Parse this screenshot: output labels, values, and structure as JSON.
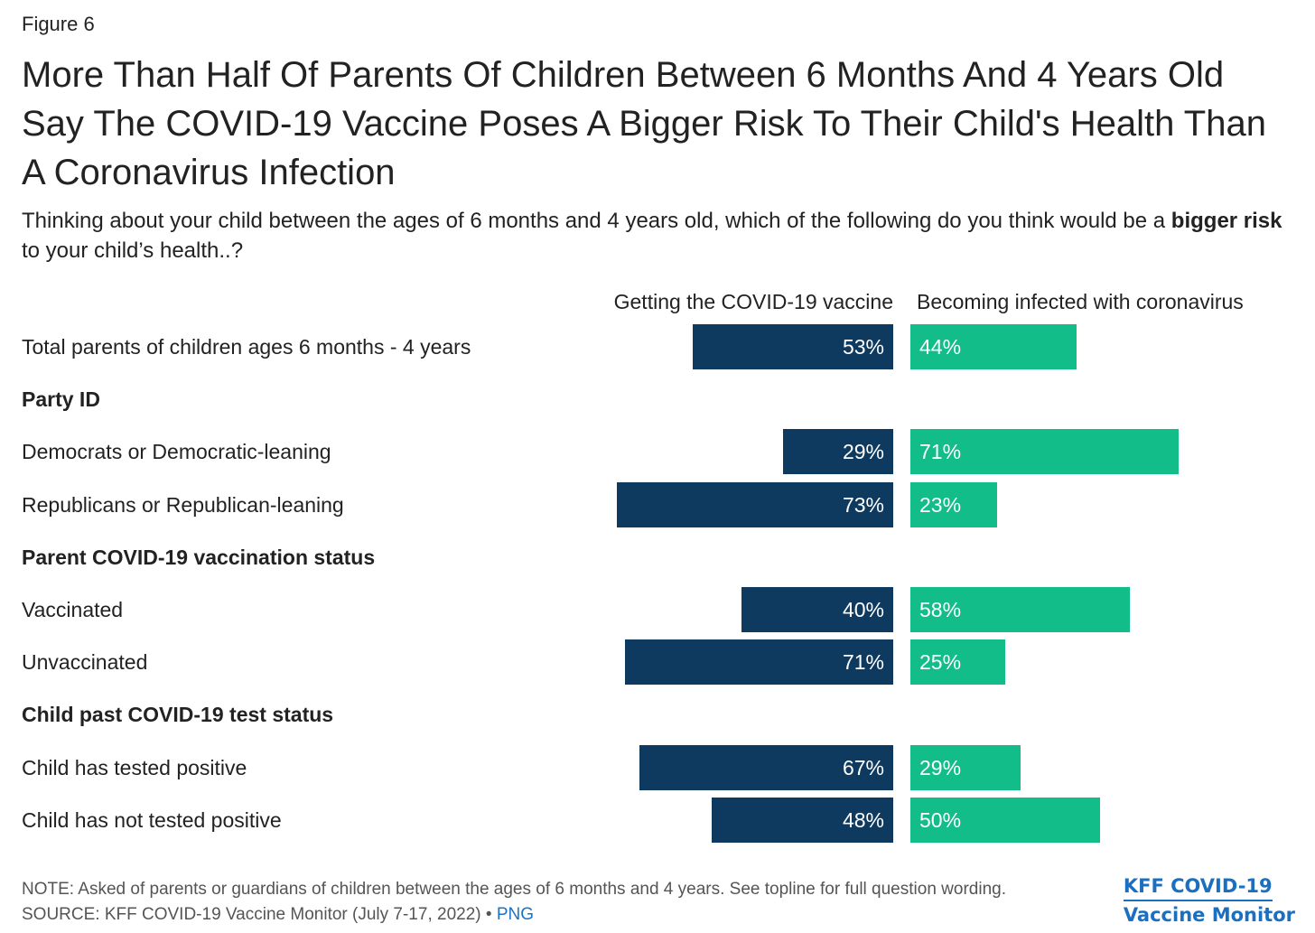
{
  "figure_label": "Figure 6",
  "title": "More Than Half Of Parents Of Children Between 6 Months And 4 Years Old Say The COVID-19 Vaccine Poses A Bigger Risk To Their Child's Health Than A Coronavirus Infection",
  "subtitle": {
    "before": "Thinking about your child between the ages of 6 months and 4 years old, which of the following do you think would be a ",
    "bold": "bigger risk",
    "after": " to your child’s health..?"
  },
  "footer": {
    "note": "NOTE: Asked of parents or guardians of children between the ages of 6 months and 4 years. See topline for full question wording.",
    "source": "SOURCE: KFF COVID-19 Vaccine Monitor (July 7-17, 2022) • ",
    "png_link": "PNG"
  },
  "brand": {
    "line1": "KFF COVID-19",
    "line2": "Vaccine Monitor"
  },
  "colors": {
    "vaccine": "#0f3a5f",
    "infection": "#12bd8a"
  },
  "chart_data": {
    "type": "bar",
    "orientation": "horizontal-diverging",
    "value_format": "percent",
    "series": [
      {
        "name": "Getting the COVID-19 vaccine",
        "color": "#0f3a5f"
      },
      {
        "name": "Becoming infected with coronavirus",
        "color": "#12bd8a"
      }
    ],
    "rows": [
      {
        "label": "Total parents of children ages 6 months - 4 years",
        "vaccine": 53,
        "infection": 44
      },
      {
        "label": "Party ID",
        "group": true
      },
      {
        "label": "Democrats or Democratic-leaning",
        "vaccine": 29,
        "infection": 71
      },
      {
        "label": "Republicans or Republican-leaning",
        "vaccine": 73,
        "infection": 23
      },
      {
        "label": "Parent COVID-19 vaccination status",
        "group": true
      },
      {
        "label": "Vaccinated",
        "vaccine": 40,
        "infection": 58
      },
      {
        "label": "Unvaccinated",
        "vaccine": 71,
        "infection": 25
      },
      {
        "label": "Child past COVID-19 test status",
        "group": true
      },
      {
        "label": "Child has tested positive",
        "vaccine": 67,
        "infection": 29
      },
      {
        "label": "Child has not tested positive",
        "vaccine": 48,
        "infection": 50
      }
    ]
  }
}
